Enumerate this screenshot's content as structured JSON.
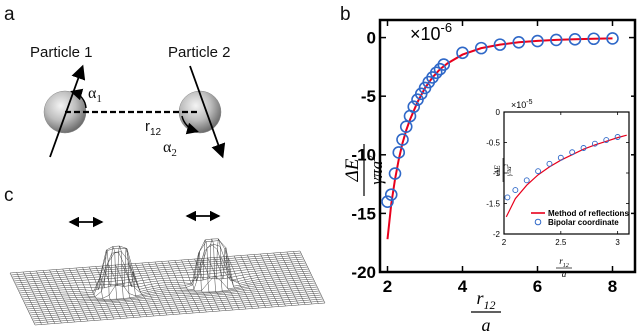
{
  "panels": {
    "a": {
      "letter": "a",
      "particle1": "Particle 1",
      "particle2": "Particle 2",
      "alpha1": "α",
      "alpha1_sub": "1",
      "alpha2": "α",
      "alpha2_sub": "2",
      "r12": "r",
      "r12_sub": "12"
    },
    "b": {
      "letter": "b"
    },
    "c": {
      "letter": "c"
    }
  },
  "colors": {
    "method_of_reflections": "#e8001c",
    "bipolar_coordinate": "#2f68c8",
    "axis": "#000000"
  },
  "chart_data": [
    {
      "type": "line",
      "role": "main",
      "exponent_label": "×10",
      "exponent_power": "-6",
      "ylabel_num": "ΔE",
      "ylabel_den": "γπa",
      "ylabel_den_sup": "2",
      "xlabel_num": "r",
      "xlabel_num_sub": "12",
      "xlabel_den": "a",
      "xlim": [
        1.8,
        8.6
      ],
      "ylim": [
        -20,
        1.5
      ],
      "xticks": [
        2,
        4,
        6,
        8
      ],
      "yticks": [
        0,
        -5,
        -10,
        -15,
        -20
      ],
      "xtick_labels": [
        "2",
        "4",
        "6",
        "8"
      ],
      "ytick_labels": [
        "0",
        "-5",
        "-10",
        "-15",
        "-20"
      ],
      "series": [
        {
          "kind": "line",
          "x": [
            2.0,
            2.1,
            2.2,
            2.3,
            2.4,
            2.5,
            2.6,
            2.8,
            3.0,
            3.2,
            3.4,
            3.6,
            4.0,
            4.5,
            5.0,
            5.5,
            6.0,
            6.5,
            7.0,
            7.5,
            8.0
          ],
          "y": [
            -17.2,
            -14.2,
            -12.1,
            -10.4,
            -9.0,
            -7.9,
            -7.0,
            -5.5,
            -4.3,
            -3.4,
            -2.7,
            -2.2,
            -1.45,
            -0.9,
            -0.6,
            -0.4,
            -0.28,
            -0.2,
            -0.14,
            -0.1,
            -0.07
          ]
        },
        {
          "kind": "scatter",
          "x": [
            2.0,
            2.1,
            2.2,
            2.3,
            2.4,
            2.5,
            2.6,
            2.7,
            2.8,
            2.9,
            3.0,
            3.1,
            3.2,
            3.3,
            3.4,
            3.5,
            4.0,
            4.5,
            5.0,
            5.5,
            6.0,
            6.5,
            7.0,
            7.5,
            8.0
          ],
          "y": [
            -14.0,
            -13.4,
            -11.6,
            -9.8,
            -8.7,
            -7.6,
            -6.7,
            -5.9,
            -5.3,
            -4.8,
            -4.3,
            -3.8,
            -3.4,
            -3.0,
            -2.7,
            -2.3,
            -1.3,
            -0.9,
            -0.6,
            -0.4,
            -0.3,
            -0.2,
            -0.15,
            -0.1,
            -0.07
          ]
        }
      ]
    },
    {
      "type": "line",
      "role": "inset",
      "exponent_label": "×10",
      "exponent_power": "-5",
      "ylabel_num": "ΔE",
      "ylabel_den": "γπa",
      "ylabel_den_sup": "2",
      "xlabel_num": "r",
      "xlabel_num_sub": "12",
      "xlabel_den": "a",
      "xlim": [
        2,
        3.1
      ],
      "ylim": [
        -2,
        0
      ],
      "xticks": [
        2,
        2.5,
        3
      ],
      "yticks": [
        0,
        -0.5,
        -1,
        -1.5,
        -2
      ],
      "xtick_labels": [
        "2",
        "2.5",
        "3"
      ],
      "ytick_labels": [
        "0",
        "-0.5",
        "-1",
        "-1.5",
        "-2"
      ],
      "legend": [
        "Method of reflections",
        "Bipolar coordinate"
      ],
      "legend_position": "bottom-right",
      "series": [
        {
          "kind": "line",
          "name": "Method of reflections",
          "x": [
            2.02,
            2.1,
            2.2,
            2.3,
            2.4,
            2.5,
            2.6,
            2.7,
            2.8,
            2.9,
            3.0,
            3.08
          ],
          "y": [
            -1.72,
            -1.42,
            -1.2,
            -1.03,
            -0.9,
            -0.79,
            -0.7,
            -0.61,
            -0.54,
            -0.48,
            -0.42,
            -0.38
          ]
        },
        {
          "kind": "scatter",
          "name": "Bipolar coordinate",
          "x": [
            2.03,
            2.1,
            2.2,
            2.3,
            2.4,
            2.5,
            2.6,
            2.7,
            2.8,
            2.9,
            3.0
          ],
          "y": [
            -1.4,
            -1.28,
            -1.12,
            -0.97,
            -0.85,
            -0.75,
            -0.66,
            -0.59,
            -0.52,
            -0.46,
            -0.41
          ]
        }
      ]
    }
  ]
}
